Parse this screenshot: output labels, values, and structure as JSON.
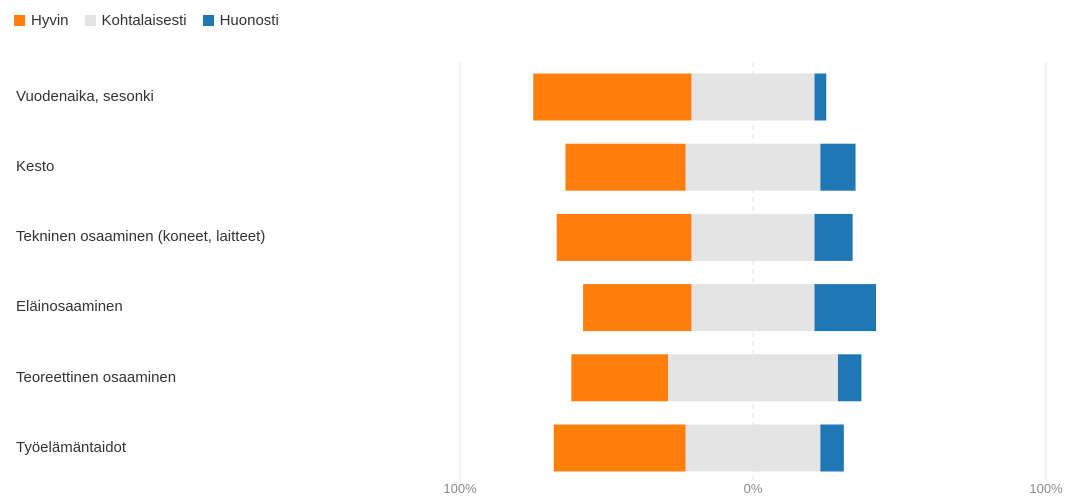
{
  "chart_data": {
    "type": "bar",
    "orientation": "horizontal",
    "stacking": "diverging",
    "categories": [
      "Vuodenaika, sesonki",
      "Kesto",
      "Tekninen osaaminen (koneet, laitteet)",
      "Eläinosaaminen",
      "Teoreettinen osaaminen",
      "Työelämäntaidot"
    ],
    "series": [
      {
        "name": "Hyvin",
        "color": "#ff7f0e",
        "values": [
          54,
          41,
          46,
          37,
          33,
          45
        ]
      },
      {
        "name": "Kohtalaisesti",
        "color": "#e4e4e4",
        "values": [
          42,
          46,
          42,
          42,
          58,
          46
        ]
      },
      {
        "name": "Huonosti",
        "color": "#1f77b4",
        "values": [
          4,
          12,
          13,
          21,
          8,
          8
        ]
      }
    ],
    "x_ticks": [
      "100%",
      "0%",
      "100%"
    ],
    "xlim": [
      -100,
      100
    ],
    "legend_position": "top-left",
    "grid": true
  }
}
